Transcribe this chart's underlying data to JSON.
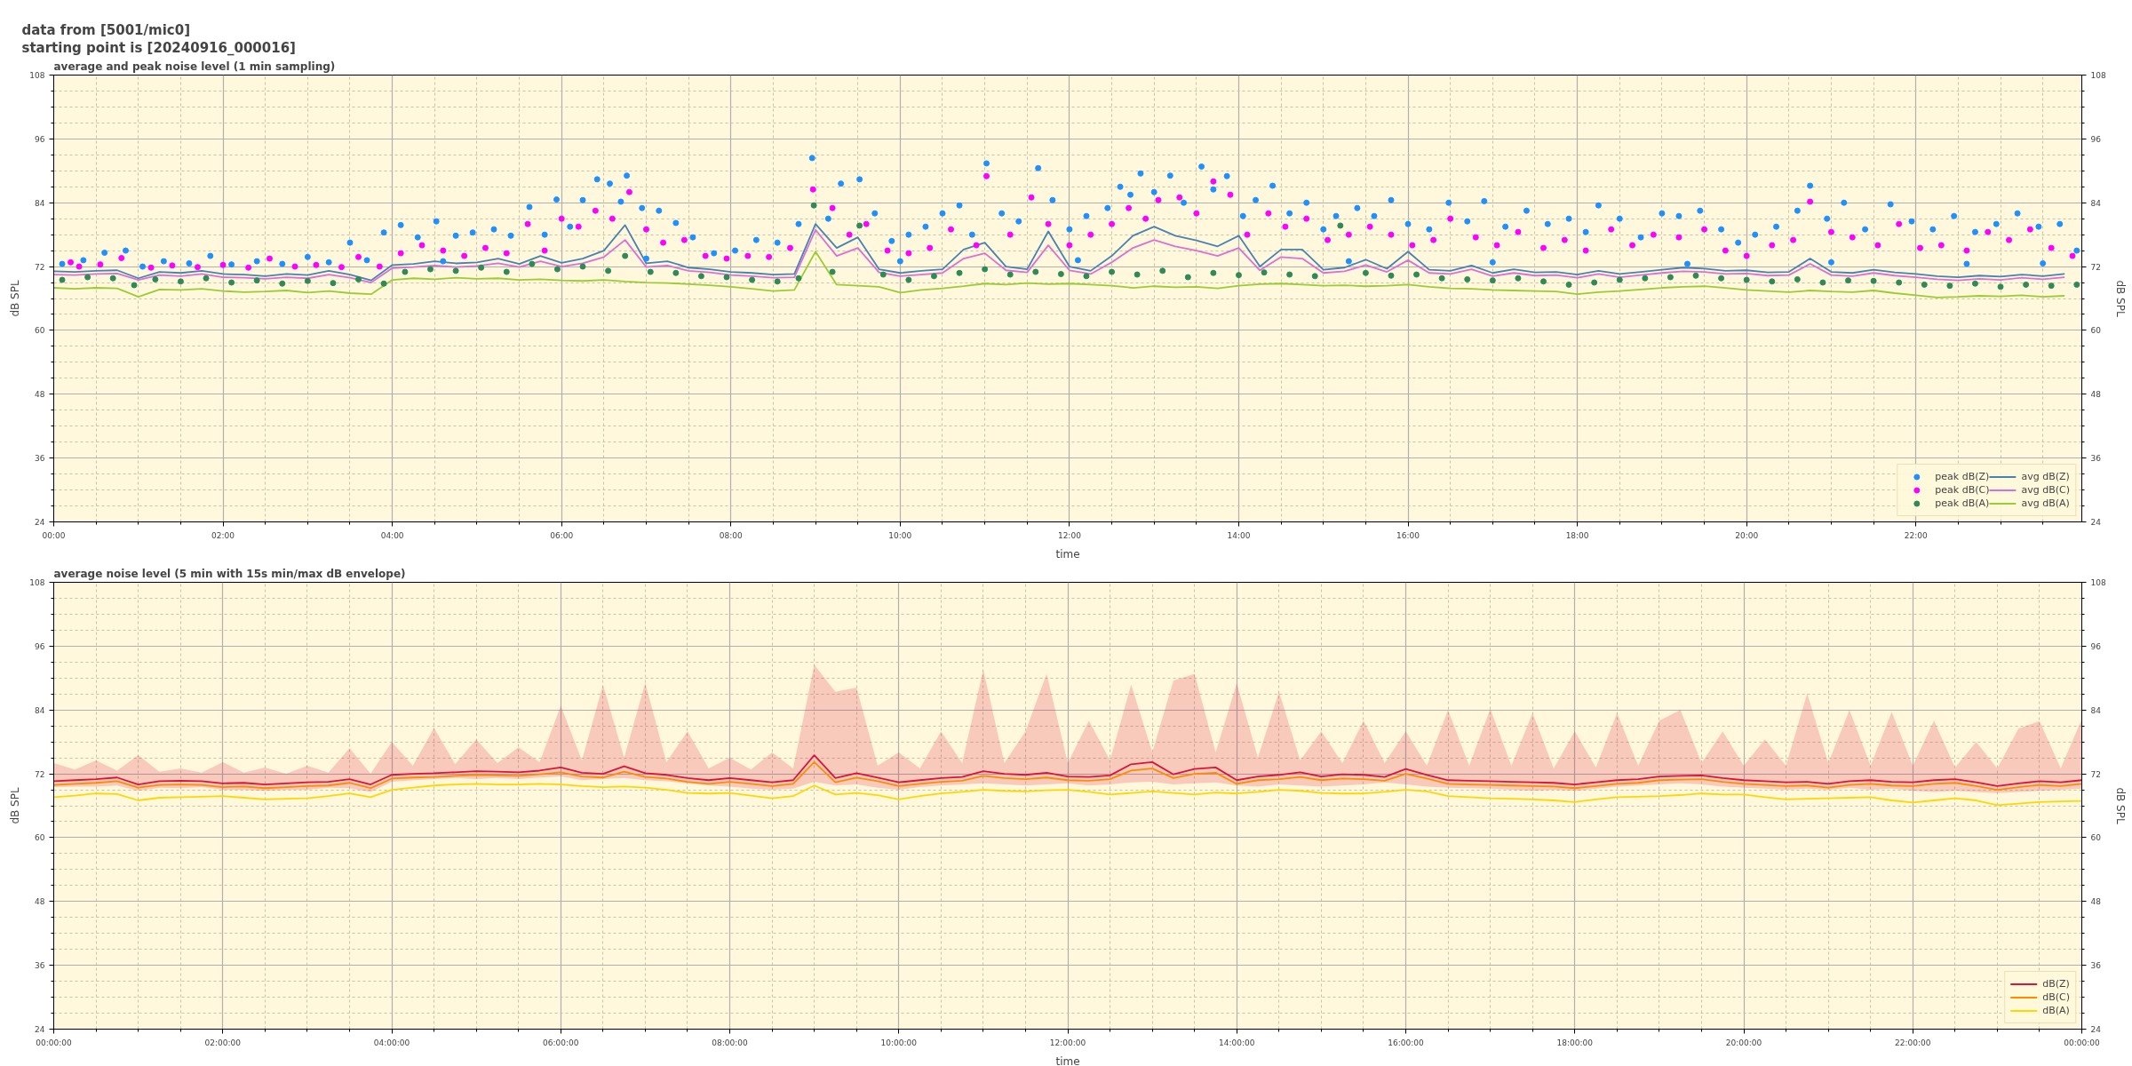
{
  "chart_data": [
    {
      "type": "line",
      "title": "average and peak noise level (1 min sampling)",
      "annotations": [
        "data from [5001/mic0]",
        "starting point is [20240916_000016]"
      ],
      "xlabel": "time",
      "ylabel": "dB SPL",
      "y2label": "dB SPL",
      "xlim": [
        0,
        23.96
      ],
      "xticks": [
        {
          "value": 0,
          "label": "00:00"
        },
        {
          "value": 2,
          "label": "02:00"
        },
        {
          "value": 4,
          "label": "04:00"
        },
        {
          "value": 6,
          "label": "06:00"
        },
        {
          "value": 8,
          "label": "08:00"
        },
        {
          "value": 10,
          "label": "10:00"
        },
        {
          "value": 12,
          "label": "12:00"
        },
        {
          "value": 14,
          "label": "14:00"
        },
        {
          "value": 16,
          "label": "16:00"
        },
        {
          "value": 18,
          "label": "18:00"
        },
        {
          "value": 20,
          "label": "20:00"
        },
        {
          "value": 22,
          "label": "22:00"
        }
      ],
      "ylim": [
        24,
        108
      ],
      "yticks": [
        24,
        36,
        48,
        60,
        72,
        84,
        96,
        108
      ],
      "y2lim": [
        24,
        108
      ],
      "y2ticks": [
        24,
        36,
        48,
        60,
        72,
        84,
        96,
        108
      ],
      "grid": true,
      "legend": "bottom right",
      "x": [
        0,
        0.25,
        0.5,
        0.75,
        1,
        1.25,
        1.5,
        1.75,
        2,
        2.25,
        2.5,
        2.75,
        3,
        3.25,
        3.5,
        3.75,
        4,
        4.25,
        4.5,
        4.75,
        5,
        5.25,
        5.5,
        5.75,
        6,
        6.25,
        6.5,
        6.75,
        7,
        7.25,
        7.5,
        7.75,
        8,
        8.25,
        8.5,
        8.75,
        9,
        9.25,
        9.5,
        9.75,
        10,
        10.25,
        10.5,
        10.75,
        11,
        11.25,
        11.5,
        11.75,
        12,
        12.25,
        12.5,
        12.75,
        13,
        13.25,
        13.5,
        13.75,
        14,
        14.25,
        14.5,
        14.75,
        15,
        15.25,
        15.5,
        15.75,
        16,
        16.25,
        16.5,
        16.75,
        17,
        17.25,
        17.5,
        17.75,
        18,
        18.25,
        18.5,
        18.75,
        19,
        19.25,
        19.5,
        19.75,
        20,
        20.25,
        20.5,
        20.75,
        21,
        21.25,
        21.5,
        21.75,
        22,
        22.25,
        22.5,
        22.75,
        23,
        23.25,
        23.5,
        23.75
      ],
      "series": [
        {
          "name": "peak dB(Z)",
          "type": "scatter",
          "marker": "circle",
          "color": "#1e90ff",
          "x": [
            0.1,
            0.35,
            0.6,
            0.85,
            1.05,
            1.3,
            1.6,
            1.85,
            2.1,
            2.4,
            2.7,
            3.0,
            3.25,
            3.5,
            3.7,
            3.9,
            4.1,
            4.3,
            4.52,
            4.6,
            4.75,
            4.95,
            5.2,
            5.4,
            5.62,
            5.8,
            5.94,
            6.1,
            6.25,
            6.42,
            6.57,
            6.7,
            6.77,
            6.95,
            7.0,
            7.15,
            7.35,
            7.55,
            7.8,
            8.05,
            8.3,
            8.55,
            8.8,
            8.96,
            9.15,
            9.3,
            9.52,
            9.7,
            9.9,
            10.0,
            10.1,
            10.3,
            10.5,
            10.7,
            10.85,
            11.02,
            11.2,
            11.4,
            11.63,
            11.8,
            12.0,
            12.1,
            12.2,
            12.45,
            12.6,
            12.72,
            12.84,
            13.0,
            13.19,
            13.35,
            13.56,
            13.7,
            13.86,
            14.05,
            14.2,
            14.4,
            14.6,
            14.8,
            15.0,
            15.15,
            15.3,
            15.4,
            15.6,
            15.8,
            16.0,
            16.25,
            16.48,
            16.7,
            16.9,
            17.0,
            17.15,
            17.4,
            17.65,
            17.9,
            18.1,
            18.25,
            18.5,
            18.75,
            19.0,
            19.2,
            19.3,
            19.45,
            19.7,
            19.9,
            20.1,
            20.35,
            20.6,
            20.75,
            20.95,
            21.0,
            21.15,
            21.4,
            21.7,
            21.95,
            22.2,
            22.45,
            22.6,
            22.7,
            22.95,
            23.2,
            23.45,
            23.5,
            23.7,
            23.9
          ],
          "values": [
            72.5,
            73.2,
            74.6,
            75.0,
            72.0,
            73.0,
            72.6,
            74.0,
            72.4,
            73.0,
            72.5,
            73.8,
            72.8,
            76.5,
            73.2,
            78.4,
            79.8,
            77.5,
            80.5,
            73.0,
            77.8,
            78.4,
            79.0,
            77.8,
            83.2,
            78.0,
            84.6,
            79.5,
            84.5,
            88.4,
            87.6,
            84.2,
            89.1,
            83.0,
            73.5,
            82.5,
            80.2,
            77.5,
            74.5,
            75.0,
            77.0,
            76.5,
            80.0,
            92.4,
            81.0,
            87.6,
            88.4,
            82.0,
            76.8,
            73.0,
            78.0,
            79.5,
            82.0,
            83.5,
            78.0,
            91.4,
            82.0,
            80.5,
            90.5,
            84.5,
            79.0,
            73.2,
            81.5,
            83.0,
            87.0,
            85.5,
            89.5,
            86.0,
            89.1,
            84.0,
            90.8,
            86.5,
            89.0,
            81.5,
            84.5,
            87.2,
            82.0,
            84.0,
            79.0,
            81.5,
            73.0,
            83.0,
            81.5,
            84.5,
            80.0,
            79.0,
            84.0,
            80.5,
            84.3,
            72.8,
            79.5,
            82.5,
            80.0,
            81.0,
            78.5,
            83.5,
            81.0,
            77.5,
            82.0,
            81.5,
            72.5,
            82.5,
            79.0,
            76.5,
            78.0,
            79.5,
            82.5,
            87.2,
            81.0,
            72.8,
            84.0,
            79.0,
            83.7,
            80.5,
            79.0,
            81.5,
            72.5,
            78.5,
            80.0,
            82.0,
            79.5,
            72.6,
            80.0,
            75.0
          ]
        },
        {
          "name": "peak dB(C)",
          "type": "scatter",
          "marker": "circle",
          "color": "#ff00ff",
          "x": [
            0.2,
            0.3,
            0.55,
            0.8,
            1.15,
            1.4,
            1.7,
            2.0,
            2.3,
            2.55,
            2.85,
            3.1,
            3.4,
            3.6,
            3.85,
            4.1,
            4.35,
            4.6,
            4.85,
            5.1,
            5.35,
            5.6,
            5.8,
            6.0,
            6.2,
            6.4,
            6.6,
            6.8,
            7.0,
            7.2,
            7.45,
            7.7,
            7.95,
            8.2,
            8.45,
            8.7,
            8.97,
            9.2,
            9.4,
            9.6,
            9.85,
            10.1,
            10.35,
            10.6,
            10.9,
            11.02,
            11.3,
            11.55,
            11.75,
            12.0,
            12.25,
            12.5,
            12.7,
            12.9,
            13.05,
            13.3,
            13.5,
            13.7,
            13.9,
            14.1,
            14.35,
            14.55,
            14.8,
            15.05,
            15.3,
            15.55,
            15.8,
            16.05,
            16.3,
            16.5,
            16.8,
            17.05,
            17.3,
            17.6,
            17.85,
            18.1,
            18.4,
            18.65,
            18.9,
            19.2,
            19.5,
            19.75,
            20.0,
            20.3,
            20.55,
            20.75,
            21.0,
            21.25,
            21.55,
            21.8,
            22.05,
            22.3,
            22.6,
            22.85,
            23.1,
            23.35,
            23.6,
            23.85
          ],
          "values": [
            72.8,
            72.0,
            72.4,
            73.6,
            71.8,
            72.2,
            71.9,
            72.3,
            71.8,
            73.5,
            72.0,
            72.3,
            71.9,
            73.8,
            72.0,
            74.5,
            76.0,
            75.0,
            74.0,
            75.5,
            74.5,
            80.0,
            75.0,
            81.0,
            79.5,
            82.5,
            81.0,
            86.0,
            79.0,
            76.5,
            77.0,
            74.0,
            73.5,
            74.0,
            73.8,
            75.5,
            86.5,
            83.0,
            78.0,
            80.0,
            75.0,
            74.5,
            75.5,
            79.0,
            76.0,
            89.0,
            78.0,
            85.0,
            80.0,
            76.0,
            78.0,
            80.0,
            83.0,
            81.0,
            84.5,
            85.0,
            82.0,
            88.0,
            85.5,
            78.0,
            82.0,
            79.5,
            81.0,
            77.0,
            78.0,
            79.5,
            78.0,
            76.0,
            77.0,
            81.0,
            77.5,
            76.0,
            78.5,
            75.5,
            77.0,
            75.0,
            79.0,
            76.0,
            78.0,
            77.5,
            79.0,
            75.0,
            74.0,
            76.0,
            77.0,
            84.2,
            78.5,
            77.5,
            76.0,
            80.0,
            75.5,
            76.0,
            75.0,
            78.5,
            77.0,
            79.0,
            75.5,
            74.0
          ]
        },
        {
          "name": "peak dB(A)",
          "type": "scatter",
          "marker": "circle",
          "color": "#2e8b57",
          "x": [
            0.1,
            0.4,
            0.7,
            0.95,
            1.2,
            1.5,
            1.8,
            2.1,
            2.4,
            2.7,
            3.0,
            3.3,
            3.6,
            3.9,
            4.15,
            4.45,
            4.75,
            5.05,
            5.35,
            5.65,
            5.95,
            6.25,
            6.55,
            6.75,
            7.05,
            7.35,
            7.65,
            7.95,
            8.25,
            8.55,
            8.8,
            8.98,
            9.2,
            9.52,
            9.8,
            10.1,
            10.4,
            10.7,
            11.0,
            11.3,
            11.6,
            11.9,
            12.2,
            12.5,
            12.8,
            13.1,
            13.4,
            13.7,
            14.0,
            14.3,
            14.6,
            14.9,
            15.2,
            15.5,
            15.8,
            16.1,
            16.4,
            16.7,
            17.0,
            17.3,
            17.6,
            17.9,
            18.2,
            18.5,
            18.8,
            19.1,
            19.4,
            19.7,
            20.0,
            20.3,
            20.6,
            20.9,
            21.2,
            21.5,
            21.8,
            22.1,
            22.4,
            22.7,
            23.0,
            23.3,
            23.6,
            23.9
          ],
          "values": [
            69.5,
            70.0,
            69.8,
            68.5,
            69.6,
            69.2,
            69.8,
            69.0,
            69.4,
            68.8,
            69.3,
            68.9,
            69.6,
            68.8,
            71.0,
            71.5,
            71.2,
            71.8,
            71.0,
            72.5,
            71.5,
            72.0,
            71.2,
            74.0,
            71.0,
            70.8,
            70.2,
            70.0,
            69.5,
            69.2,
            69.8,
            83.5,
            71.0,
            79.7,
            70.5,
            69.5,
            70.2,
            70.8,
            71.5,
            70.5,
            71.0,
            70.6,
            70.2,
            71.0,
            70.5,
            71.2,
            70.0,
            70.8,
            70.4,
            70.9,
            70.5,
            70.2,
            79.7,
            70.8,
            70.3,
            70.5,
            69.8,
            69.6,
            69.4,
            69.8,
            69.2,
            68.6,
            69.0,
            69.5,
            69.8,
            70.0,
            70.3,
            69.8,
            69.5,
            69.2,
            69.6,
            69.0,
            69.4,
            69.3,
            69.0,
            68.6,
            68.4,
            68.8,
            68.2,
            68.6,
            68.4,
            68.6
          ]
        },
        {
          "name": "avg dB(Z)",
          "color": "#4682b4",
          "values": [
            71.1,
            71.0,
            71.2,
            71.3,
            69.8,
            71.0,
            70.8,
            71.2,
            70.6,
            70.5,
            70.2,
            70.6,
            70.4,
            71.2,
            70.5,
            69.4,
            72.3,
            72.5,
            73.0,
            72.6,
            72.8,
            73.5,
            72.5,
            74.0,
            72.7,
            73.5,
            75.0,
            79.8,
            72.6,
            73.0,
            71.8,
            71.5,
            71.0,
            70.8,
            70.5,
            70.6,
            80.0,
            75.5,
            77.5,
            71.5,
            70.8,
            71.2,
            71.5,
            75.2,
            76.5,
            72.0,
            71.5,
            78.6,
            72.0,
            71.2,
            74.0,
            77.8,
            79.5,
            77.8,
            76.9,
            75.8,
            77.8,
            72.0,
            75.2,
            75.2,
            71.4,
            71.8,
            73.3,
            71.6,
            74.8,
            71.4,
            71.2,
            72.2,
            70.8,
            71.5,
            70.9,
            71.0,
            70.5,
            71.2,
            70.6,
            71.0,
            71.4,
            71.8,
            71.6,
            71.2,
            71.3,
            70.9,
            71.0,
            73.5,
            71.0,
            70.8,
            71.4,
            70.9,
            70.6,
            70.2,
            70.0,
            70.3,
            70.1,
            70.5,
            70.2,
            70.6
          ]
        },
        {
          "name": "avg dB(C)",
          "color": "#da70d6",
          "values": [
            70.5,
            70.4,
            70.6,
            70.7,
            69.5,
            70.4,
            70.2,
            70.6,
            70.0,
            69.9,
            69.7,
            70.0,
            69.8,
            70.5,
            69.9,
            69.0,
            71.7,
            71.9,
            72.2,
            71.9,
            72.1,
            72.6,
            71.9,
            73.0,
            72.0,
            72.6,
            73.8,
            77.0,
            71.9,
            72.2,
            71.2,
            70.9,
            70.4,
            70.2,
            69.9,
            70.0,
            78.9,
            74.0,
            75.5,
            70.9,
            70.2,
            70.5,
            70.8,
            73.5,
            74.5,
            71.3,
            70.9,
            76.0,
            71.3,
            70.6,
            72.8,
            75.5,
            77.0,
            75.8,
            75.0,
            74.0,
            75.5,
            71.3,
            73.8,
            73.5,
            70.8,
            71.1,
            72.3,
            71.0,
            73.2,
            70.8,
            70.6,
            71.5,
            70.2,
            70.8,
            70.3,
            70.4,
            69.9,
            70.6,
            70.0,
            70.4,
            70.8,
            71.1,
            71.0,
            70.6,
            70.7,
            70.3,
            70.4,
            72.5,
            70.4,
            70.2,
            70.8,
            70.3,
            70.0,
            69.6,
            69.4,
            69.7,
            69.5,
            69.9,
            69.6,
            70.0
          ]
        },
        {
          "name": "avg dB(A)",
          "color": "#9acd32",
          "values": [
            68.0,
            67.8,
            68.0,
            67.9,
            66.3,
            67.7,
            67.6,
            67.8,
            67.4,
            67.2,
            67.3,
            67.5,
            67.1,
            67.4,
            67.0,
            66.8,
            69.5,
            69.8,
            69.6,
            69.9,
            69.7,
            69.8,
            69.5,
            69.6,
            69.4,
            69.3,
            69.5,
            69.2,
            69.0,
            68.9,
            68.7,
            68.5,
            68.2,
            67.8,
            67.4,
            67.6,
            74.8,
            68.6,
            68.4,
            68.2,
            67.1,
            67.6,
            67.9,
            68.3,
            68.8,
            68.6,
            68.9,
            68.7,
            68.8,
            68.6,
            68.4,
            68.0,
            68.3,
            68.1,
            68.2,
            67.9,
            68.4,
            68.7,
            68.8,
            68.6,
            68.4,
            68.5,
            68.3,
            68.4,
            68.6,
            68.2,
            67.9,
            67.8,
            67.6,
            67.5,
            67.4,
            67.3,
            66.8,
            67.2,
            67.4,
            67.7,
            68.0,
            68.2,
            68.3,
            68.0,
            67.6,
            67.4,
            67.2,
            67.5,
            67.3,
            67.2,
            67.5,
            67.0,
            66.6,
            66.2,
            66.3,
            66.5,
            66.4,
            66.6,
            66.3,
            66.5
          ]
        }
      ]
    },
    {
      "type": "line",
      "title": "average noise level (5 min with 15s min/max dB envelope)",
      "xlabel": "time",
      "ylabel": "dB SPL",
      "y2label": "dB SPL",
      "xlim": [
        "2024-09-16T00:00",
        "2024-09-17T00:00"
      ],
      "xticks": [
        {
          "value": "2024-09-16T00:00",
          "label": "00:00:00"
        },
        {
          "value": "2024-09-16T02:00",
          "label": "02:00:00"
        },
        {
          "value": "2024-09-16T04:00",
          "label": "04:00:00"
        },
        {
          "value": "2024-09-16T06:00",
          "label": "06:00:00"
        },
        {
          "value": "2024-09-16T08:00",
          "label": "08:00:00"
        },
        {
          "value": "2024-09-16T10:00",
          "label": "10:00:00"
        },
        {
          "value": "2024-09-16T12:00",
          "label": "12:00:00"
        },
        {
          "value": "2024-09-16T14:00",
          "label": "14:00:00"
        },
        {
          "value": "2024-09-16T16:00",
          "label": "16:00:00"
        },
        {
          "value": "2024-09-16T18:00",
          "label": "18:00:00"
        },
        {
          "value": "2024-09-16T20:00",
          "label": "20:00:00"
        },
        {
          "value": "2024-09-16T22:00",
          "label": "22:00:00"
        },
        {
          "value": "2024-09-17T00:00",
          "label": "00:00:00"
        }
      ],
      "ylim": [
        24,
        108
      ],
      "yticks": [
        24,
        36,
        48,
        60,
        72,
        84,
        96,
        108
      ],
      "y2lim": [
        24,
        108
      ],
      "y2ticks": [
        24,
        36,
        48,
        60,
        72,
        84,
        96,
        108
      ],
      "grid": true,
      "legend": "bottom right",
      "x": [
        "2024-09-16T00:00",
        "2024-09-16T00:15",
        "2024-09-16T00:30",
        "2024-09-16T00:45",
        "2024-09-16T01:00",
        "2024-09-16T01:15",
        "2024-09-16T01:30",
        "2024-09-16T01:45",
        "2024-09-16T02:00",
        "2024-09-16T02:15",
        "2024-09-16T02:30",
        "2024-09-16T02:45",
        "2024-09-16T03:00",
        "2024-09-16T03:15",
        "2024-09-16T03:30",
        "2024-09-16T03:45",
        "2024-09-16T04:00",
        "2024-09-16T04:15",
        "2024-09-16T04:30",
        "2024-09-16T04:45",
        "2024-09-16T05:00",
        "2024-09-16T05:15",
        "2024-09-16T05:30",
        "2024-09-16T05:45",
        "2024-09-16T06:00",
        "2024-09-16T06:15",
        "2024-09-16T06:30",
        "2024-09-16T06:45",
        "2024-09-16T07:00",
        "2024-09-16T07:15",
        "2024-09-16T07:30",
        "2024-09-16T07:45",
        "2024-09-16T08:00",
        "2024-09-16T08:15",
        "2024-09-16T08:30",
        "2024-09-16T08:45",
        "2024-09-16T09:00",
        "2024-09-16T09:15",
        "2024-09-16T09:30",
        "2024-09-16T09:45",
        "2024-09-16T10:00",
        "2024-09-16T10:15",
        "2024-09-16T10:30",
        "2024-09-16T10:45",
        "2024-09-16T11:00",
        "2024-09-16T11:15",
        "2024-09-16T11:30",
        "2024-09-16T11:45",
        "2024-09-16T12:00",
        "2024-09-16T12:15",
        "2024-09-16T12:30",
        "2024-09-16T12:45",
        "2024-09-16T13:00",
        "2024-09-16T13:15",
        "2024-09-16T13:30",
        "2024-09-16T13:45",
        "2024-09-16T14:00",
        "2024-09-16T14:15",
        "2024-09-16T14:30",
        "2024-09-16T14:45",
        "2024-09-16T15:00",
        "2024-09-16T15:15",
        "2024-09-16T15:30",
        "2024-09-16T15:45",
        "2024-09-16T16:00",
        "2024-09-16T16:15",
        "2024-09-16T16:30",
        "2024-09-16T16:45",
        "2024-09-16T17:00",
        "2024-09-16T17:15",
        "2024-09-16T17:30",
        "2024-09-16T17:45",
        "2024-09-16T18:00",
        "2024-09-16T18:15",
        "2024-09-16T18:30",
        "2024-09-16T18:45",
        "2024-09-16T19:00",
        "2024-09-16T19:15",
        "2024-09-16T19:30",
        "2024-09-16T19:45",
        "2024-09-16T20:00",
        "2024-09-16T20:15",
        "2024-09-16T20:30",
        "2024-09-16T20:45",
        "2024-09-16T21:00",
        "2024-09-16T21:15",
        "2024-09-16T21:30",
        "2024-09-16T21:45",
        "2024-09-16T22:00",
        "2024-09-16T22:15",
        "2024-09-16T22:30",
        "2024-09-16T22:45",
        "2024-09-16T23:00",
        "2024-09-16T23:15",
        "2024-09-16T23:30",
        "2024-09-16T23:45",
        "2024-09-17T00:00"
      ],
      "series": [
        {
          "name": "dB(Z)",
          "color": "#dc143c",
          "values": [
            70.6,
            70.8,
            71.0,
            71.3,
            70.0,
            70.6,
            70.7,
            70.6,
            70.2,
            70.3,
            70.0,
            70.2,
            70.4,
            70.5,
            71.0,
            70.0,
            71.8,
            72.0,
            72.1,
            72.3,
            72.5,
            72.4,
            72.3,
            72.6,
            73.2,
            72.2,
            72.0,
            73.4,
            72.1,
            71.8,
            71.2,
            70.8,
            71.2,
            70.8,
            70.4,
            70.8,
            75.5,
            71.2,
            72.1,
            71.3,
            70.4,
            70.8,
            71.2,
            71.4,
            72.5,
            72.0,
            71.8,
            72.2,
            71.5,
            71.4,
            71.7,
            73.8,
            74.2,
            71.9,
            72.9,
            73.2,
            70.8,
            71.5,
            71.8,
            72.3,
            71.5,
            71.9,
            71.8,
            71.4,
            72.9,
            71.8,
            70.8,
            70.7,
            70.6,
            70.5,
            70.4,
            70.3,
            70.0,
            70.4,
            70.8,
            71.0,
            71.5,
            71.6,
            71.7,
            71.2,
            70.8,
            70.6,
            70.4,
            70.5,
            70.1,
            70.6,
            70.8,
            70.5,
            70.4,
            70.8,
            71.0,
            70.4,
            69.7,
            70.2,
            70.6,
            70.4,
            70.8
          ],
          "lower": [
            69.5,
            69.6,
            69.6,
            69.8,
            68.8,
            69.4,
            69.3,
            69.5,
            69.0,
            69.0,
            68.8,
            69.0,
            69.0,
            69.4,
            69.3,
            68.6,
            70.5,
            70.8,
            71.0,
            71.2,
            71.0,
            71.2,
            71.0,
            71.3,
            71.5,
            70.8,
            71.0,
            71.2,
            70.8,
            70.6,
            70.2,
            69.8,
            69.6,
            69.2,
            69.0,
            69.2,
            70.5,
            69.8,
            70.0,
            69.4,
            69.0,
            69.5,
            69.8,
            70.0,
            70.2,
            70.0,
            69.8,
            70.0,
            70.2,
            69.8,
            70.0,
            70.4,
            70.5,
            70.0,
            70.2,
            70.4,
            69.8,
            69.6,
            70.0,
            69.8,
            69.6,
            69.8,
            70.0,
            70.4,
            70.0,
            69.6,
            69.4,
            69.3,
            69.2,
            69.0,
            68.8,
            69.0,
            68.8,
            69.2,
            69.6,
            69.8,
            70.0,
            70.2,
            70.0,
            69.6,
            69.4,
            69.2,
            69.0,
            69.2,
            69.0,
            69.4,
            69.0,
            69.2,
            68.8,
            68.6,
            68.8,
            68.6,
            68.4,
            68.6,
            68.8,
            69.0,
            69.2
          ],
          "upper": [
            74.0,
            72.8,
            74.5,
            72.6,
            75.5,
            72.4,
            73.0,
            72.2,
            74.2,
            72.2,
            73.2,
            72.0,
            73.5,
            72.2,
            76.8,
            72.0,
            78.0,
            73.5,
            80.6,
            73.8,
            78.5,
            74.0,
            77.0,
            74.2,
            84.8,
            74.5,
            88.7,
            75.0,
            89.1,
            74.2,
            80.0,
            73.0,
            75.0,
            72.8,
            76.0,
            73.0,
            92.5,
            87.4,
            88.2,
            73.5,
            76.0,
            73.0,
            80.0,
            74.0,
            91.6,
            74.0,
            80.0,
            90.8,
            74.0,
            82.0,
            74.5,
            88.8,
            76.0,
            89.5,
            90.8,
            76.0,
            89.0,
            75.0,
            87.4,
            74.5,
            80.0,
            74.0,
            82.0,
            74.0,
            80.0,
            73.5,
            84.0,
            73.5,
            84.2,
            73.5,
            83.4,
            73.0,
            80.0,
            73.2,
            83.4,
            73.5,
            82.0,
            84.0,
            74.0,
            80.0,
            73.5,
            78.5,
            73.5,
            87.1,
            74.0,
            84.0,
            73.5,
            83.6,
            73.5,
            82.0,
            73.2,
            78.0,
            73.0,
            80.5,
            81.9,
            73.0,
            82.3
          ]
        },
        {
          "name": "dB(C)",
          "color": "#ff8c00",
          "values": [
            69.9,
            70.1,
            70.3,
            70.6,
            69.4,
            69.9,
            70.0,
            69.9,
            69.5,
            69.6,
            69.3,
            69.5,
            69.7,
            69.8,
            70.3,
            69.3,
            71.1,
            71.3,
            71.4,
            71.6,
            71.8,
            71.7,
            71.6,
            71.9,
            72.3,
            71.5,
            71.3,
            72.4,
            71.4,
            71.1,
            70.5,
            70.1,
            70.5,
            70.1,
            69.7,
            70.1,
            74.2,
            70.4,
            71.3,
            70.6,
            69.7,
            70.1,
            70.5,
            70.7,
            71.6,
            71.2,
            71.0,
            71.3,
            70.8,
            70.7,
            71.0,
            72.6,
            73.0,
            71.2,
            72.0,
            72.2,
            70.1,
            70.8,
            71.0,
            71.4,
            70.8,
            71.1,
            71.0,
            70.7,
            72.0,
            71.1,
            70.1,
            70.0,
            69.9,
            69.8,
            69.7,
            69.6,
            69.3,
            69.7,
            70.1,
            70.3,
            70.8,
            70.9,
            71.0,
            70.5,
            70.1,
            69.9,
            69.7,
            69.8,
            69.4,
            69.9,
            70.1,
            69.8,
            69.7,
            70.1,
            70.3,
            69.7,
            69.0,
            69.5,
            69.9,
            69.7,
            70.1
          ]
        },
        {
          "name": "dB(A)",
          "color": "#ffd700",
          "values": [
            67.6,
            67.9,
            68.3,
            68.2,
            67.0,
            67.5,
            67.6,
            67.7,
            67.8,
            67.5,
            67.2,
            67.3,
            67.4,
            67.8,
            68.3,
            67.6,
            69.0,
            69.4,
            69.8,
            70.0,
            70.1,
            70.0,
            70.0,
            70.1,
            70.0,
            69.7,
            69.5,
            69.6,
            69.4,
            69.0,
            68.4,
            68.3,
            68.4,
            67.9,
            67.4,
            67.8,
            69.8,
            68.1,
            68.4,
            68.0,
            67.2,
            67.8,
            68.3,
            68.6,
            69.0,
            68.8,
            68.7,
            68.9,
            69.0,
            68.6,
            68.1,
            68.4,
            68.7,
            68.4,
            68.1,
            68.5,
            68.3,
            68.6,
            69.0,
            68.8,
            68.4,
            68.3,
            68.3,
            68.6,
            69.0,
            68.7,
            67.8,
            67.6,
            67.4,
            67.3,
            67.2,
            67.0,
            66.7,
            67.2,
            67.6,
            67.7,
            67.8,
            68.0,
            68.3,
            68.1,
            68.1,
            67.6,
            67.2,
            67.3,
            67.4,
            67.5,
            67.6,
            67.0,
            66.6,
            67.0,
            67.4,
            67.0,
            66.1,
            66.4,
            66.7,
            66.8,
            66.9
          ]
        }
      ]
    }
  ]
}
